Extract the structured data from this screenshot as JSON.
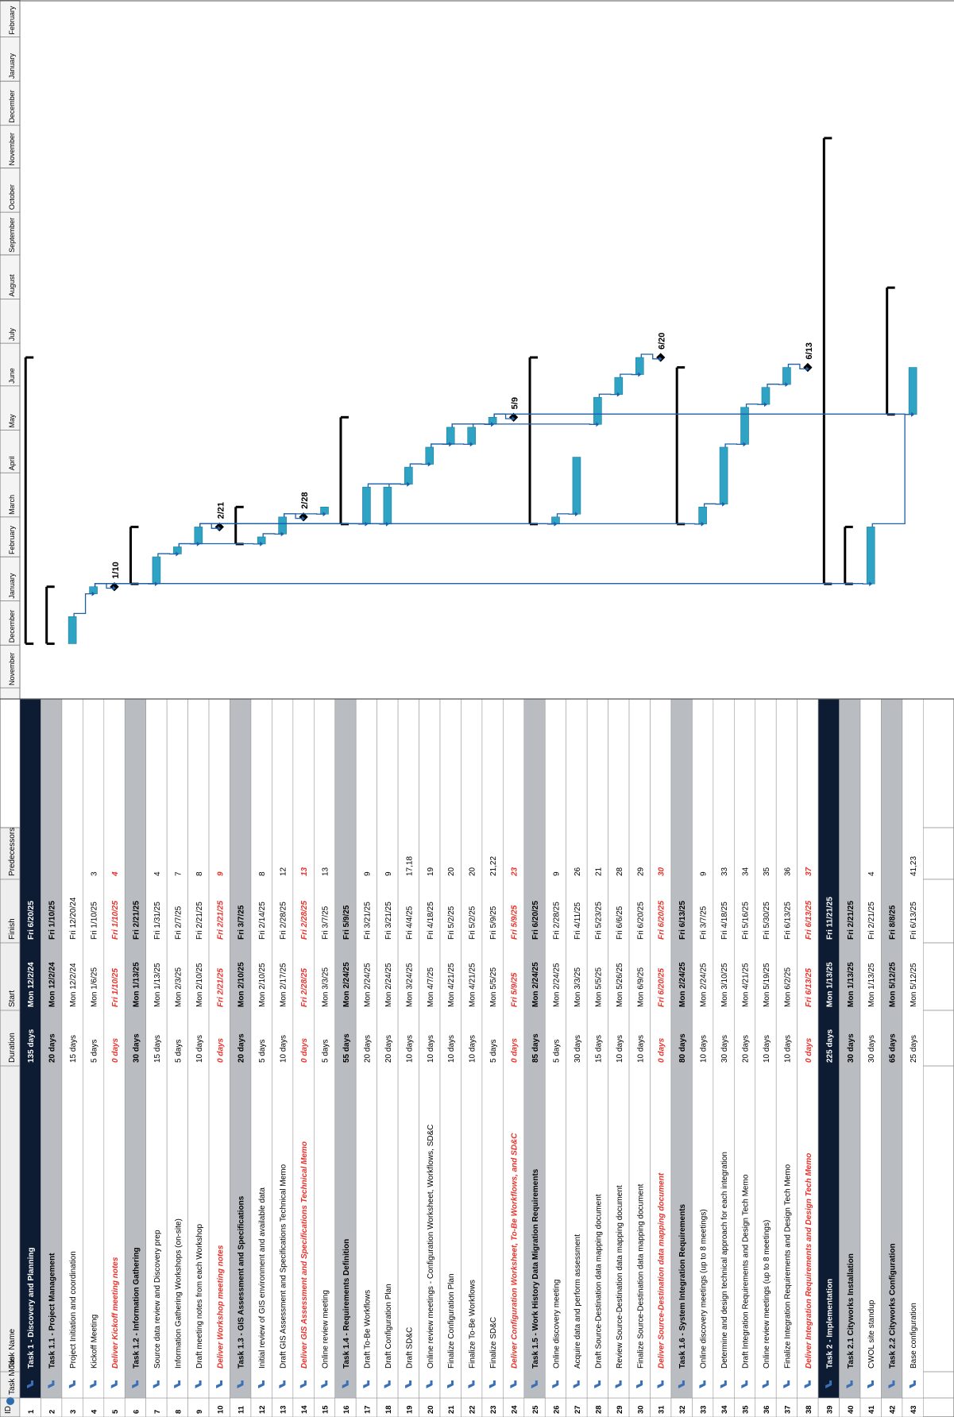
{
  "columns": {
    "id": "ID",
    "info": "i",
    "mode": "Task Mode",
    "name": "Task Name",
    "duration": "Duration",
    "start": "Start",
    "finish": "Finish",
    "predecessors": "Predecessors"
  },
  "timeline_months": [
    "November",
    "December",
    "January",
    "February",
    "March",
    "April",
    "May",
    "June",
    "July",
    "August",
    "September",
    "October",
    "November",
    "December",
    "January",
    "February"
  ],
  "timeline_start": "2024-11-01",
  "colors": {
    "header_dark": "#0d1b33",
    "summary_grey": "#b9bdc1",
    "milestone_text": "#e8322b",
    "bar": "#2fa3c4",
    "link": "#1d5fa8",
    "summary_bar": "#000000"
  },
  "tasks": [
    {
      "id": "1",
      "name": "Task 1 - Discovery and Planning",
      "duration": "135 days",
      "start": "Mon 12/2/24",
      "finish": "Fri 6/20/25",
      "pred": "",
      "type": "top",
      "s": "2024-12-02",
      "f": "2025-06-20"
    },
    {
      "id": "2",
      "name": "Task 1.1 - Project Management",
      "duration": "20 days",
      "start": "Mon 12/2/24",
      "finish": "Fri 1/10/25",
      "pred": "",
      "type": "summary",
      "s": "2024-12-02",
      "f": "2025-01-10"
    },
    {
      "id": "3",
      "name": "Project Initiation and coordination",
      "duration": "15 days",
      "start": "Mon 12/2/24",
      "finish": "Fri 12/20/24",
      "pred": "",
      "type": "task",
      "s": "2024-12-02",
      "f": "2024-12-20"
    },
    {
      "id": "4",
      "name": "Kickoff Meeting",
      "duration": "5 days",
      "start": "Mon 1/6/25",
      "finish": "Fri 1/10/25",
      "pred": "3",
      "type": "task",
      "s": "2025-01-06",
      "f": "2025-01-10"
    },
    {
      "id": "5",
      "name": "Deliver Kickoff meeting notes",
      "duration": "0 days",
      "start": "Fri 1/10/25",
      "finish": "Fri 1/10/25",
      "pred": "4",
      "type": "milestone",
      "s": "2025-01-10",
      "f": "2025-01-10",
      "label": "1/10"
    },
    {
      "id": "6",
      "name": "Task 1.2 - Information Gathering",
      "duration": "30 days",
      "start": "Mon 1/13/25",
      "finish": "Fri 2/21/25",
      "pred": "",
      "type": "summary",
      "s": "2025-01-13",
      "f": "2025-02-21"
    },
    {
      "id": "7",
      "name": "Source data review and Discovery prep",
      "duration": "15 days",
      "start": "Mon 1/13/25",
      "finish": "Fri 1/31/25",
      "pred": "4",
      "type": "task",
      "s": "2025-01-13",
      "f": "2025-01-31"
    },
    {
      "id": "8",
      "name": "Information Gathering Workshops (on-site)",
      "duration": "5 days",
      "start": "Mon 2/3/25",
      "finish": "Fri 2/7/25",
      "pred": "7",
      "type": "task",
      "s": "2025-02-03",
      "f": "2025-02-07"
    },
    {
      "id": "9",
      "name": "Draft meeting notes from each Workshop",
      "duration": "10 days",
      "start": "Mon 2/10/25",
      "finish": "Fri 2/21/25",
      "pred": "8",
      "type": "task",
      "s": "2025-02-10",
      "f": "2025-02-21"
    },
    {
      "id": "10",
      "name": "Deliver Workshop meeting notes",
      "duration": "0 days",
      "start": "Fri 2/21/25",
      "finish": "Fri 2/21/25",
      "pred": "9",
      "type": "milestone",
      "s": "2025-02-21",
      "f": "2025-02-21",
      "label": "2/21"
    },
    {
      "id": "11",
      "name": "Task 1.3 - GIS Assessment and Specifications",
      "duration": "20 days",
      "start": "Mon 2/10/25",
      "finish": "Fri 3/7/25",
      "pred": "",
      "type": "summary",
      "s": "2025-02-10",
      "f": "2025-03-07"
    },
    {
      "id": "12",
      "name": "Initial review of GIS environment and available data",
      "duration": "5 days",
      "start": "Mon 2/10/25",
      "finish": "Fri 2/14/25",
      "pred": "8",
      "type": "task",
      "s": "2025-02-10",
      "f": "2025-02-14"
    },
    {
      "id": "13",
      "name": "Draft GIS Assessment and Specifications Technical Memo",
      "duration": "10 days",
      "start": "Mon 2/17/25",
      "finish": "Fri 2/28/25",
      "pred": "12",
      "type": "task",
      "s": "2025-02-17",
      "f": "2025-02-28"
    },
    {
      "id": "14",
      "name": "Deliver GIS Assessment and Specifications Technical Memo",
      "duration": "0 days",
      "start": "Fri 2/28/25",
      "finish": "Fri 2/28/25",
      "pred": "13",
      "type": "milestone",
      "s": "2025-02-28",
      "f": "2025-02-28",
      "label": "2/28"
    },
    {
      "id": "15",
      "name": "Online review meeting",
      "duration": "5 days",
      "start": "Mon 3/3/25",
      "finish": "Fri 3/7/25",
      "pred": "13",
      "type": "task",
      "s": "2025-03-03",
      "f": "2025-03-07"
    },
    {
      "id": "16",
      "name": "Task 1.4 - Requirements Definition",
      "duration": "55 days",
      "start": "Mon 2/24/25",
      "finish": "Fri 5/9/25",
      "pred": "",
      "type": "summary",
      "s": "2025-02-24",
      "f": "2025-05-09"
    },
    {
      "id": "17",
      "name": "Draft To-Be Workflows",
      "duration": "20 days",
      "start": "Mon 2/24/25",
      "finish": "Fri 3/21/25",
      "pred": "9",
      "type": "task",
      "s": "2025-02-24",
      "f": "2025-03-21"
    },
    {
      "id": "18",
      "name": "Draft Configuration Plan",
      "duration": "20 days",
      "start": "Mon 2/24/25",
      "finish": "Fri 3/21/25",
      "pred": "9",
      "type": "task",
      "s": "2025-02-24",
      "f": "2025-03-21"
    },
    {
      "id": "19",
      "name": "Draft SD&C",
      "duration": "10 days",
      "start": "Mon 3/24/25",
      "finish": "Fri 4/4/25",
      "pred": "17,18",
      "type": "task",
      "s": "2025-03-24",
      "f": "2025-04-04"
    },
    {
      "id": "20",
      "name": "Online review meetings - Configuration Worksheet, Workflows, SD&C",
      "duration": "10 days",
      "start": "Mon 4/7/25",
      "finish": "Fri 4/18/25",
      "pred": "19",
      "type": "task",
      "s": "2025-04-07",
      "f": "2025-04-18"
    },
    {
      "id": "21",
      "name": "Finalize Configuration Plan",
      "duration": "10 days",
      "start": "Mon 4/21/25",
      "finish": "Fri 5/2/25",
      "pred": "20",
      "type": "task",
      "s": "2025-04-21",
      "f": "2025-05-02"
    },
    {
      "id": "22",
      "name": "Finalize To-Be Workflows",
      "duration": "10 days",
      "start": "Mon 4/21/25",
      "finish": "Fri 5/2/25",
      "pred": "20",
      "type": "task",
      "s": "2025-04-21",
      "f": "2025-05-02"
    },
    {
      "id": "23",
      "name": "Finalize SD&C",
      "duration": "5 days",
      "start": "Mon 5/5/25",
      "finish": "Fri 5/9/25",
      "pred": "21,22",
      "type": "task",
      "s": "2025-05-05",
      "f": "2025-05-09"
    },
    {
      "id": "24",
      "name": "Deliver Configuration Worksheet, To-Be Workflows, and SD&C",
      "duration": "0 days",
      "start": "Fri 5/9/25",
      "finish": "Fri 5/9/25",
      "pred": "23",
      "type": "milestone",
      "s": "2025-05-09",
      "f": "2025-05-09",
      "label": "5/9"
    },
    {
      "id": "25",
      "name": "Task 1.5 - Work History Data Migration Requirements",
      "duration": "85 days",
      "start": "Mon 2/24/25",
      "finish": "Fri 6/20/25",
      "pred": "",
      "type": "summary",
      "s": "2025-02-24",
      "f": "2025-06-20"
    },
    {
      "id": "26",
      "name": "Online discovery meeting",
      "duration": "5 days",
      "start": "Mon 2/24/25",
      "finish": "Fri 2/28/25",
      "pred": "9",
      "type": "task",
      "s": "2025-02-24",
      "f": "2025-02-28"
    },
    {
      "id": "27",
      "name": "Acquire data and perform assessment",
      "duration": "30 days",
      "start": "Mon 3/3/25",
      "finish": "Fri 4/11/25",
      "pred": "26",
      "type": "task",
      "s": "2025-03-03",
      "f": "2025-04-11"
    },
    {
      "id": "28",
      "name": "Draft Source-Destination data mapping document",
      "duration": "15 days",
      "start": "Mon 5/5/25",
      "finish": "Fri 5/23/25",
      "pred": "21",
      "type": "task",
      "s": "2025-05-05",
      "f": "2025-05-23"
    },
    {
      "id": "29",
      "name": "Review Source-Destination data mapping document",
      "duration": "10 days",
      "start": "Mon 5/26/25",
      "finish": "Fri 6/6/25",
      "pred": "28",
      "type": "task",
      "s": "2025-05-26",
      "f": "2025-06-06"
    },
    {
      "id": "30",
      "name": "Finalize Source-Destination data mapping document",
      "duration": "10 days",
      "start": "Mon 6/9/25",
      "finish": "Fri 6/20/25",
      "pred": "29",
      "type": "task",
      "s": "2025-06-09",
      "f": "2025-06-20"
    },
    {
      "id": "31",
      "name": "Deliver Source-Destination data mapping document",
      "duration": "0 days",
      "start": "Fri 6/20/25",
      "finish": "Fri 6/20/25",
      "pred": "30",
      "type": "milestone",
      "s": "2025-06-20",
      "f": "2025-06-20",
      "label": "6/20"
    },
    {
      "id": "32",
      "name": "Task 1.6 - System Integration Requirements",
      "duration": "80 days",
      "start": "Mon 2/24/25",
      "finish": "Fri 6/13/25",
      "pred": "",
      "type": "summary",
      "s": "2025-02-24",
      "f": "2025-06-13"
    },
    {
      "id": "33",
      "name": "Online discovery meetings (up to 8 meetings)",
      "duration": "10 days",
      "start": "Mon 2/24/25",
      "finish": "Fri 3/7/25",
      "pred": "9",
      "type": "task",
      "s": "2025-02-24",
      "f": "2025-03-07"
    },
    {
      "id": "34",
      "name": "Determine and design technical approach for each integration",
      "duration": "30 days",
      "start": "Mon 3/10/25",
      "finish": "Fri 4/18/25",
      "pred": "33",
      "type": "task",
      "s": "2025-03-10",
      "f": "2025-04-18"
    },
    {
      "id": "35",
      "name": "Draft Integration Requirements and Design Tech Memo",
      "duration": "20 days",
      "start": "Mon 4/21/25",
      "finish": "Fri 5/16/25",
      "pred": "34",
      "type": "task",
      "s": "2025-04-21",
      "f": "2025-05-16"
    },
    {
      "id": "36",
      "name": "Online review meetings (up to 8 meetings)",
      "duration": "10 days",
      "start": "Mon 5/19/25",
      "finish": "Fri 5/30/25",
      "pred": "35",
      "type": "task",
      "s": "2025-05-19",
      "f": "2025-05-30"
    },
    {
      "id": "37",
      "name": "Finalize Integration Requirements and Design Tech Memo",
      "duration": "10 days",
      "start": "Mon 6/2/25",
      "finish": "Fri 6/13/25",
      "pred": "36",
      "type": "task",
      "s": "2025-06-02",
      "f": "2025-06-13"
    },
    {
      "id": "38",
      "name": "Deliver Integration Requirements and Design Tech Memo",
      "duration": "0 days",
      "start": "Fri 6/13/25",
      "finish": "Fri 6/13/25",
      "pred": "37",
      "type": "milestone",
      "s": "2025-06-13",
      "f": "2025-06-13",
      "label": "6/13"
    },
    {
      "id": "39",
      "name": "Task 2 - Implementation",
      "duration": "225 days",
      "start": "Mon 1/13/25",
      "finish": "Fri 11/21/25",
      "pred": "",
      "type": "top",
      "s": "2025-01-13",
      "f": "2025-11-21"
    },
    {
      "id": "40",
      "name": "Task 2.1 Cityworks Installation",
      "duration": "30 days",
      "start": "Mon 1/13/25",
      "finish": "Fri 2/21/25",
      "pred": "",
      "type": "summary",
      "s": "2025-01-13",
      "f": "2025-02-21"
    },
    {
      "id": "41",
      "name": "CWOL site standup",
      "duration": "30 days",
      "start": "Mon 1/13/25",
      "finish": "Fri 2/21/25",
      "pred": "4",
      "type": "task",
      "s": "2025-01-13",
      "f": "2025-02-21"
    },
    {
      "id": "42",
      "name": "Task 2.2 Cityworks Configuration",
      "duration": "65 days",
      "start": "Mon 5/12/25",
      "finish": "Fri 8/8/25",
      "pred": "",
      "type": "summary",
      "s": "2025-05-12",
      "f": "2025-08-08"
    },
    {
      "id": "43",
      "name": "Base configuration",
      "duration": "25 days",
      "start": "Mon 5/12/25",
      "finish": "Fri 6/13/25",
      "pred": "41,23",
      "type": "task",
      "s": "2025-05-12",
      "f": "2025-06-13"
    }
  ]
}
